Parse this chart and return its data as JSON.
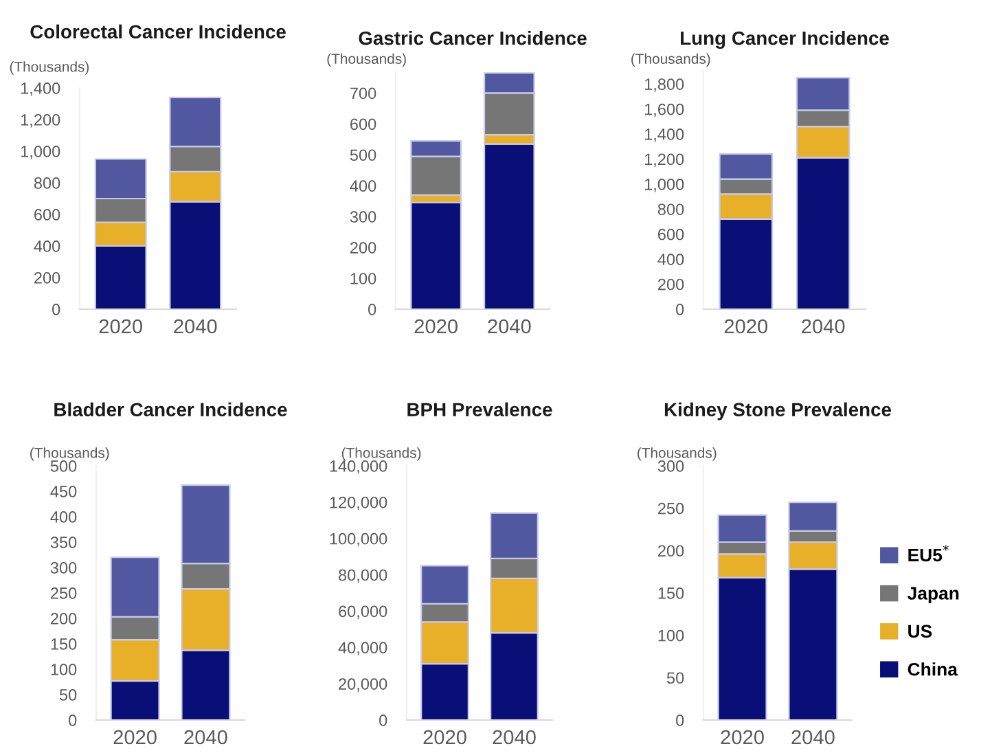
{
  "chart_data": [
    {
      "type": "bar",
      "title": "Colorectal Cancer Incidence",
      "ylabel": "(Thousands)",
      "categories": [
        "2020",
        "2040"
      ],
      "stacked": true,
      "ylim": [
        0,
        1400
      ],
      "yticks": [
        0,
        {
          "value": 200,
          "label": "200"
        },
        {
          "value": 400,
          "label": "400"
        },
        {
          "value": 600,
          "label": "600"
        },
        {
          "value": 800,
          "label": "800"
        },
        {
          "value": 1000,
          "label": "1,000"
        },
        {
          "value": 1200,
          "label": "1,200"
        },
        {
          "value": 1400,
          "label": "1,400"
        }
      ],
      "grid": false,
      "legend": false,
      "series": [
        {
          "color": "#0a0f78",
          "values": [
            400,
            680
          ]
        },
        {
          "color": "#e8b028",
          "values": [
            150,
            190
          ]
        },
        {
          "color": "#767676",
          "values": [
            150,
            160
          ]
        },
        {
          "color": "#5158a0",
          "values": [
            250,
            310
          ]
        }
      ]
    },
    {
      "type": "bar",
      "title": "Gastric Cancer Incidence",
      "ylabel": "(Thousands)",
      "categories": [
        "2020",
        "2040"
      ],
      "stacked": true,
      "ylim": [
        0,
        770
      ],
      "yticks": [
        0,
        100,
        200,
        300,
        400,
        500,
        600,
        700
      ],
      "grid": false,
      "legend": false,
      "series": [
        {
          "color": "#0a0f78",
          "values": [
            345,
            535
          ]
        },
        {
          "color": "#e8b028",
          "values": [
            25,
            30
          ]
        },
        {
          "color": "#767676",
          "values": [
            125,
            135
          ]
        },
        {
          "color": "#5158a0",
          "values": [
            50,
            65
          ]
        }
      ]
    },
    {
      "type": "bar",
      "title": "Lung Cancer Incidence",
      "ylabel": "(Thousands)",
      "categories": [
        "2020",
        "2040"
      ],
      "stacked": true,
      "ylim": [
        0,
        1900
      ],
      "yticks": [
        0,
        200,
        400,
        600,
        800,
        {
          "value": 1000,
          "label": "1,000"
        },
        {
          "value": 1200,
          "label": "1,200"
        },
        {
          "value": 1400,
          "label": "1,400"
        },
        {
          "value": 1600,
          "label": "1,600"
        },
        {
          "value": 1800,
          "label": "1,800"
        }
      ],
      "grid": false,
      "legend": false,
      "series": [
        {
          "color": "#0a0f78",
          "values": [
            720,
            1210
          ]
        },
        {
          "color": "#e8b028",
          "values": [
            200,
            250
          ]
        },
        {
          "color": "#767676",
          "values": [
            120,
            130
          ]
        },
        {
          "color": "#5158a0",
          "values": [
            200,
            260
          ]
        }
      ]
    },
    {
      "type": "bar",
      "title": "Bladder Cancer Incidence",
      "ylabel": "(Thousands)",
      "categories": [
        "2020",
        "2040"
      ],
      "stacked": true,
      "ylim": [
        0,
        500
      ],
      "yticks": [
        0,
        50,
        100,
        150,
        200,
        250,
        300,
        350,
        400,
        450,
        500
      ],
      "grid": false,
      "legend": false,
      "series": [
        {
          "color": "#0a0f78",
          "values": [
            77,
            137
          ]
        },
        {
          "color": "#e8b028",
          "values": [
            81,
            121
          ]
        },
        {
          "color": "#767676",
          "values": [
            45,
            50
          ]
        },
        {
          "color": "#5158a0",
          "values": [
            117,
            154
          ]
        }
      ]
    },
    {
      "type": "bar",
      "title": "BPH Prevalence",
      "ylabel": "(Thousands)",
      "categories": [
        "2020",
        "2040"
      ],
      "stacked": true,
      "ylim": [
        0,
        140000
      ],
      "yticks": [
        0,
        {
          "value": 20000,
          "label": "20,000"
        },
        {
          "value": 40000,
          "label": "40,000"
        },
        {
          "value": 60000,
          "label": "60,000"
        },
        {
          "value": 80000,
          "label": "80,000"
        },
        {
          "value": 100000,
          "label": "100,000"
        },
        {
          "value": 120000,
          "label": "120,000"
        },
        {
          "value": 140000,
          "label": "140,000"
        }
      ],
      "grid": false,
      "legend": false,
      "series": [
        {
          "color": "#0a0f78",
          "values": [
            31000,
            48000
          ]
        },
        {
          "color": "#e8b028",
          "values": [
            23000,
            30000
          ]
        },
        {
          "color": "#767676",
          "values": [
            10000,
            11000
          ]
        },
        {
          "color": "#5158a0",
          "values": [
            21000,
            25000
          ]
        }
      ]
    },
    {
      "type": "bar",
      "title": "Kidney Stone Prevalence",
      "ylabel": "(Thousands)",
      "categories": [
        "2020",
        "2040"
      ],
      "stacked": true,
      "ylim": [
        0,
        300
      ],
      "yticks": [
        0,
        50,
        100,
        150,
        200,
        250,
        300
      ],
      "grid": false,
      "legend": "right",
      "series": [
        {
          "name": "China",
          "color": "#0a0f78",
          "values": [
            168,
            178
          ]
        },
        {
          "name": "US",
          "color": "#e8b028",
          "values": [
            28,
            32
          ]
        },
        {
          "name": "Japan",
          "color": "#767676",
          "values": [
            14,
            13
          ]
        },
        {
          "name": "EU5$^{*}$",
          "color": "#5158a0",
          "values": [
            32,
            34
          ]
        }
      ]
    }
  ]
}
